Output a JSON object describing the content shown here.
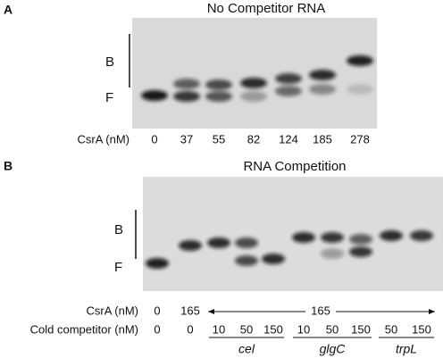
{
  "panel_a": {
    "label": "A",
    "title": "No Competitor RNA",
    "bound_label": "B",
    "free_label": "F",
    "csra_label": "CsrA (nM)",
    "csra_values": [
      "0",
      "37",
      "55",
      "82",
      "124",
      "185",
      "278"
    ]
  },
  "panel_b": {
    "label": "B",
    "title": "RNA Competition",
    "bound_label": "B",
    "free_label": "F",
    "csra_label": "CsrA (nM)",
    "csra_values": [
      "0",
      "165"
    ],
    "csra_range_value": "165",
    "competitor_label": "Cold competitor (nM)",
    "competitor_values": [
      "0",
      "0",
      "10",
      "50",
      "150",
      "10",
      "50",
      "150",
      "50",
      "150"
    ],
    "competitors": [
      "cel",
      "glgC",
      "trpL"
    ]
  }
}
